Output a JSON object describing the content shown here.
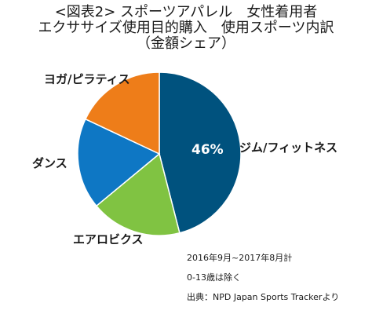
{
  "title": {
    "line1": "<図表2> スポーツアパレル　女性着用者",
    "line2": "エクササイズ使用目的購入　使用スポーツ内訳",
    "line3": "（金額シェア）"
  },
  "chart_data": {
    "type": "pie",
    "title": "<図表2> スポーツアパレル　女性着用者 エクササイズ使用目的購入　使用スポーツ内訳 （金額シェア）",
    "start_angle_deg": 0,
    "direction": "clockwise",
    "slices": [
      {
        "label": "ジム/フィットネス",
        "value": 46,
        "data_label": "46%",
        "color": "#00527e"
      },
      {
        "label": "エアロビクス",
        "value": 18,
        "data_label": "",
        "color": "#80c342"
      },
      {
        "label": "ダンス",
        "value": 18,
        "data_label": "",
        "color": "#0e77c4"
      },
      {
        "label": "ヨガ/ピラティス",
        "value": 18,
        "data_label": "",
        "color": "#ee7d19"
      }
    ]
  },
  "notes": [
    "2016年9月~2017年8月計",
    "0-13歳は除く",
    "出典：NPD Japan Sports Trackerより"
  ]
}
